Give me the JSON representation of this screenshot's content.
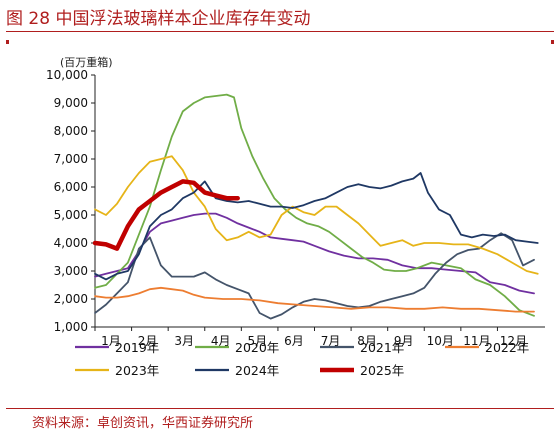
{
  "figure": {
    "title": "图 28 中国浮法玻璃样本企业库存年变动",
    "unit": "(百万重箱)",
    "source": "资料来源：卓创资讯，华西证券研究所"
  },
  "chart_data": {
    "type": "line",
    "title": "图 28 中国浮法玻璃样本企业库存年变动",
    "ylabel": "(百万重箱)",
    "xlabel": "",
    "ylim": [
      1000,
      10000
    ],
    "yticks": [
      "1,000",
      "2,000",
      "3,000",
      "4,000",
      "5,000",
      "6,000",
      "7,000",
      "8,000",
      "9,000",
      "10,000"
    ],
    "ytick_values": [
      1000,
      2000,
      3000,
      4000,
      5000,
      6000,
      7000,
      8000,
      9000,
      10000
    ],
    "xlim": [
      1,
      13.3
    ],
    "xticks": [
      "1月",
      "2月",
      "3月",
      "4月",
      "5月",
      "6月",
      "7月",
      "8月",
      "9月",
      "10月",
      "11月",
      "12月"
    ],
    "xtick_values": [
      1,
      2,
      3,
      4,
      5,
      6,
      7,
      8,
      9,
      10,
      11,
      12
    ],
    "grid": false,
    "legend": "bottom",
    "series": [
      {
        "name": "2019年",
        "color": "#7030a0",
        "x": [
          1.0,
          1.3,
          1.6,
          1.9,
          2.2,
          2.5,
          2.8,
          3.1,
          3.4,
          3.7,
          4.0,
          4.3,
          4.6,
          4.9,
          5.2,
          5.5,
          5.8,
          6.1,
          6.4,
          6.7,
          7.0,
          7.4,
          7.8,
          8.2,
          8.6,
          9.0,
          9.4,
          9.8,
          10.2,
          10.6,
          11.0,
          11.4,
          11.8,
          12.2,
          12.6,
          13.0
        ],
        "y": [
          2800,
          2900,
          3000,
          3100,
          3700,
          4400,
          4700,
          4800,
          4900,
          5000,
          5050,
          5050,
          4900,
          4700,
          4550,
          4400,
          4200,
          4150,
          4100,
          4050,
          3900,
          3700,
          3550,
          3450,
          3450,
          3400,
          3200,
          3100,
          3100,
          3050,
          3000,
          2950,
          2600,
          2500,
          2300,
          2200
        ]
      },
      {
        "name": "2020年",
        "color": "#70ad47",
        "x": [
          1.0,
          1.3,
          1.6,
          1.9,
          2.2,
          2.5,
          2.8,
          3.1,
          3.4,
          3.7,
          4.0,
          4.3,
          4.6,
          4.8,
          5.0,
          5.3,
          5.6,
          5.9,
          6.2,
          6.5,
          6.8,
          7.1,
          7.4,
          7.7,
          8.0,
          8.3,
          8.6,
          8.9,
          9.2,
          9.5,
          9.8,
          10.2,
          10.6,
          11.0,
          11.4,
          11.8,
          12.2,
          12.6,
          13.0
        ],
        "y": [
          2400,
          2500,
          2900,
          3300,
          4300,
          5300,
          6600,
          7800,
          8700,
          9000,
          9200,
          9250,
          9300,
          9200,
          8100,
          7100,
          6300,
          5600,
          5200,
          4900,
          4700,
          4600,
          4400,
          4100,
          3800,
          3500,
          3300,
          3050,
          3000,
          3000,
          3100,
          3300,
          3200,
          3100,
          2700,
          2500,
          2100,
          1600,
          1400
        ]
      },
      {
        "name": "2021年",
        "color": "#44546a",
        "x": [
          1.0,
          1.3,
          1.6,
          1.9,
          2.2,
          2.5,
          2.8,
          3.1,
          3.4,
          3.7,
          4.0,
          4.3,
          4.6,
          4.9,
          5.2,
          5.5,
          5.8,
          6.1,
          6.4,
          6.7,
          7.0,
          7.3,
          7.6,
          7.9,
          8.2,
          8.5,
          8.8,
          9.1,
          9.4,
          9.7,
          10.0,
          10.3,
          10.6,
          10.9,
          11.2,
          11.5,
          11.8,
          12.1,
          12.4,
          12.7,
          13.0
        ],
        "y": [
          1500,
          1800,
          2200,
          2600,
          3800,
          4200,
          3200,
          2800,
          2800,
          2800,
          2950,
          2700,
          2500,
          2350,
          2200,
          1500,
          1300,
          1450,
          1700,
          1900,
          2000,
          1950,
          1850,
          1750,
          1700,
          1750,
          1900,
          2000,
          2100,
          2200,
          2400,
          2900,
          3300,
          3600,
          3750,
          3800,
          4100,
          4350,
          4100,
          3200,
          3400
        ]
      },
      {
        "name": "2022年",
        "color": "#ed7d31",
        "x": [
          1.0,
          1.3,
          1.6,
          1.9,
          2.2,
          2.5,
          2.8,
          3.1,
          3.4,
          3.7,
          4.0,
          4.5,
          5.0,
          5.5,
          6.0,
          6.5,
          7.0,
          7.5,
          8.0,
          8.5,
          9.0,
          9.5,
          10.0,
          10.5,
          11.0,
          11.5,
          12.0,
          12.5,
          13.0
        ],
        "y": [
          2100,
          2050,
          2050,
          2100,
          2200,
          2350,
          2400,
          2350,
          2300,
          2150,
          2050,
          2000,
          2000,
          1950,
          1850,
          1800,
          1750,
          1700,
          1650,
          1700,
          1700,
          1650,
          1650,
          1700,
          1650,
          1650,
          1600,
          1550,
          1550
        ]
      },
      {
        "name": "2023年",
        "color": "#e6b418",
        "x": [
          1.0,
          1.3,
          1.6,
          1.9,
          2.2,
          2.5,
          2.8,
          3.1,
          3.4,
          3.7,
          4.0,
          4.3,
          4.6,
          4.9,
          5.2,
          5.5,
          5.8,
          6.1,
          6.4,
          6.7,
          7.0,
          7.3,
          7.6,
          7.9,
          8.2,
          8.5,
          8.8,
          9.1,
          9.4,
          9.7,
          10.0,
          10.4,
          10.8,
          11.2,
          11.6,
          12.0,
          12.4,
          12.8,
          13.1
        ],
        "y": [
          5200,
          5000,
          5400,
          6000,
          6500,
          6900,
          7000,
          7100,
          6600,
          5800,
          5300,
          4500,
          4100,
          4200,
          4400,
          4200,
          4300,
          5000,
          5300,
          5100,
          5000,
          5300,
          5300,
          5000,
          4700,
          4300,
          3900,
          4000,
          4100,
          3900,
          4000,
          4000,
          3950,
          3950,
          3800,
          3600,
          3300,
          3000,
          2900
        ]
      },
      {
        "name": "2024年",
        "color": "#1f3864",
        "x": [
          1.0,
          1.3,
          1.6,
          1.9,
          2.2,
          2.5,
          2.8,
          3.1,
          3.4,
          3.7,
          4.0,
          4.3,
          4.6,
          4.9,
          5.2,
          5.5,
          5.8,
          6.1,
          6.4,
          6.7,
          7.0,
          7.3,
          7.6,
          7.9,
          8.2,
          8.5,
          8.8,
          9.1,
          9.4,
          9.7,
          9.9,
          10.1,
          10.4,
          10.7,
          11.0,
          11.3,
          11.6,
          11.9,
          12.2,
          12.5,
          12.8,
          13.1
        ],
        "y": [
          2900,
          2700,
          2900,
          3000,
          3600,
          4600,
          5000,
          5200,
          5600,
          5800,
          6200,
          5600,
          5500,
          5450,
          5500,
          5400,
          5300,
          5300,
          5250,
          5350,
          5500,
          5600,
          5800,
          6000,
          6100,
          6000,
          5950,
          6050,
          6200,
          6300,
          6500,
          5800,
          5200,
          5000,
          4300,
          4200,
          4300,
          4250,
          4300,
          4100,
          4050,
          4000
        ]
      },
      {
        "name": "2025年",
        "color": "#c00000",
        "x": [
          1.0,
          1.3,
          1.6,
          1.9,
          2.2,
          2.5,
          2.8,
          3.1,
          3.4,
          3.7,
          4.0,
          4.3,
          4.6,
          4.9
        ],
        "y": [
          4000,
          3950,
          3800,
          4600,
          5200,
          5500,
          5800,
          6000,
          6200,
          6150,
          5800,
          5700,
          5600,
          5600
        ]
      }
    ]
  }
}
